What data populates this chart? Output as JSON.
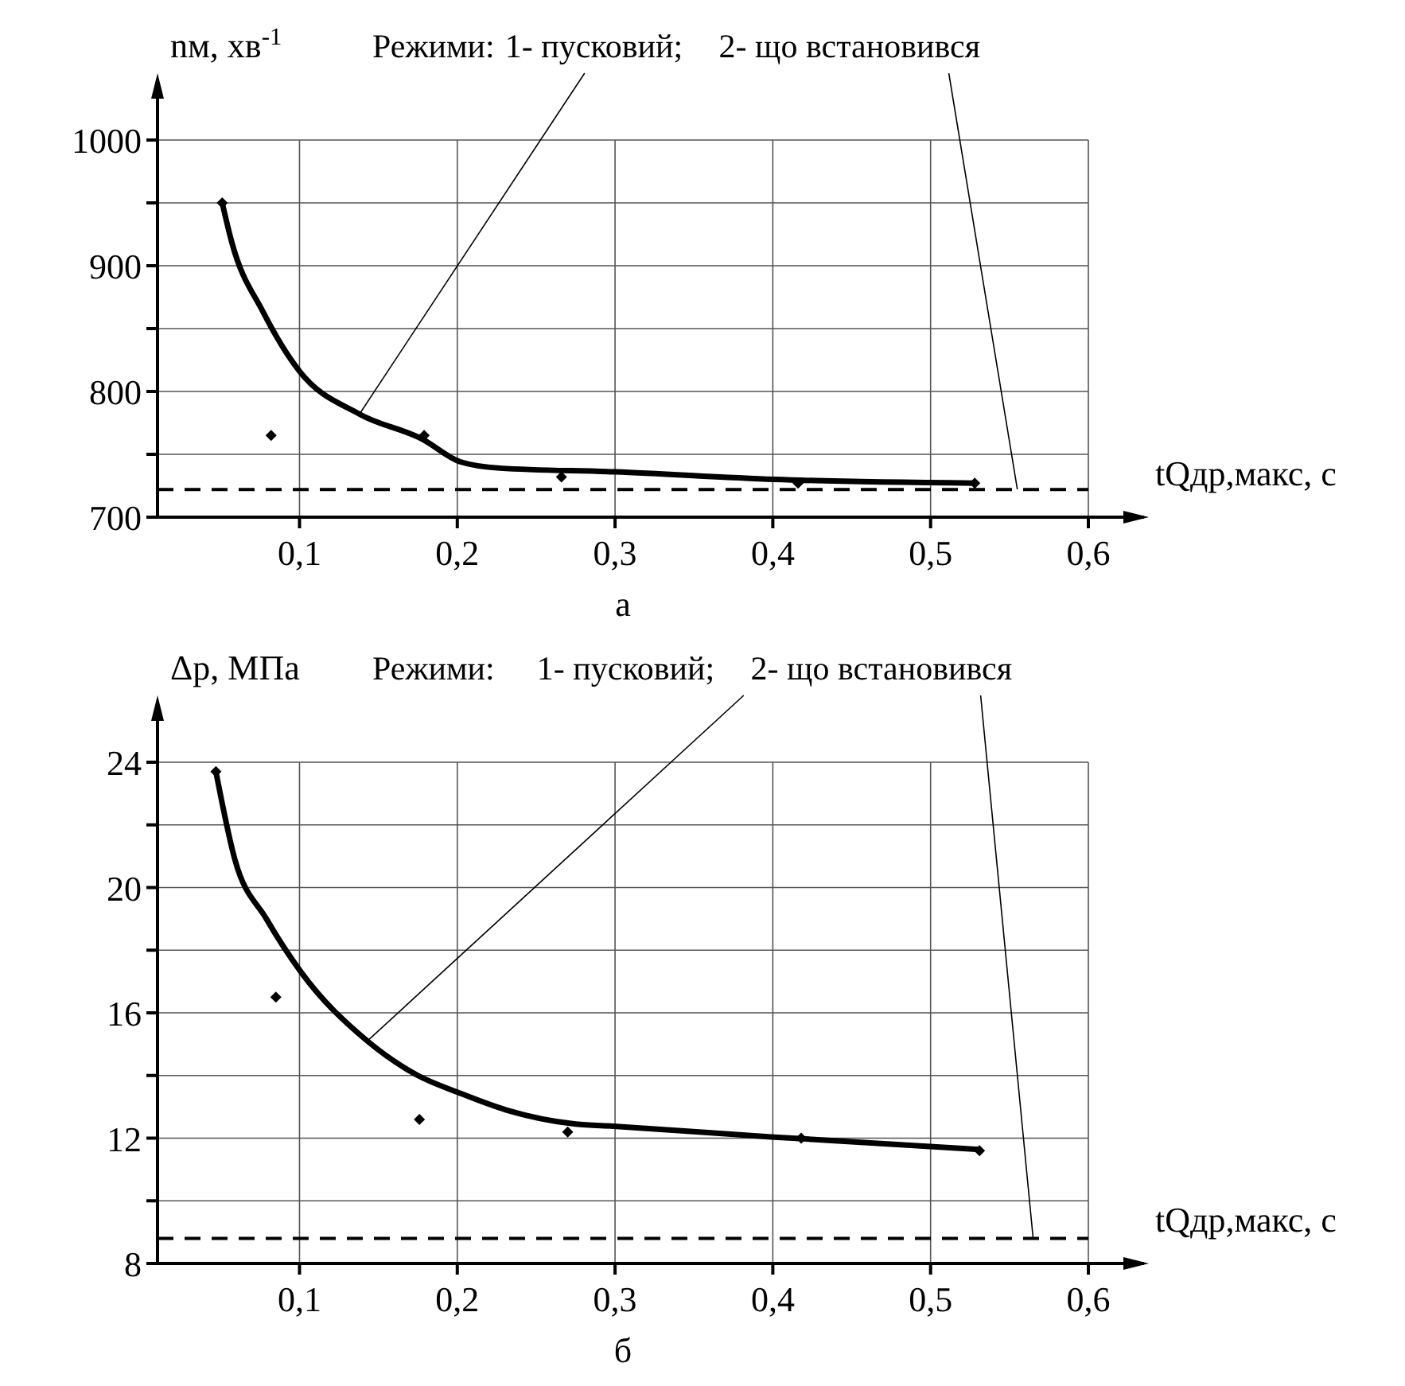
{
  "chart_data": [
    {
      "type": "line",
      "title": "а",
      "ylabel": "nм, хв$^{-1}$",
      "xlabel": "tQдр,макс, с",
      "annotations": [
        "Режими:",
        {
          "text": "1- пусковий;",
          "x": 0.138,
          "y": 782
        },
        {
          "text": "2- що встановився",
          "x": 0.555,
          "y": 722
        }
      ],
      "xlim": [
        0.01,
        0.6
      ],
      "ylim": [
        700,
        1000
      ],
      "xticks": [
        {
          "value": 0.1,
          "label": "0,1"
        },
        {
          "value": 0.2,
          "label": "0,2"
        },
        {
          "value": 0.3,
          "label": "0,3"
        },
        {
          "value": 0.4,
          "label": "0,4"
        },
        {
          "value": 0.5,
          "label": "0,5"
        },
        {
          "value": 0.6,
          "label": "0,6"
        }
      ],
      "yticks": [
        700,
        {
          "value": 750,
          "label": null
        },
        800,
        {
          "value": 850,
          "label": null
        },
        900,
        {
          "value": 950,
          "label": null
        },
        1000
      ],
      "grid": true,
      "ref_lines": [
        {
          "axis": "y",
          "value": 722,
          "line_style": "dashed",
          "color": "#000000"
        }
      ],
      "series": [
        {
          "type": "line",
          "color": "#000000",
          "marker": "none",
          "x": [
            0.051,
            0.057,
            0.077,
            0.1,
            0.138,
            0.178,
            0.202,
            0.227,
            0.3,
            0.401,
            0.528
          ],
          "values": [
            950,
            919,
            863,
            816,
            782,
            762,
            744,
            739,
            736,
            730,
            727
          ]
        },
        {
          "type": "scatter",
          "color": "#000000",
          "marker": "diamond",
          "x": [
            0.051,
            0.082,
            0.179,
            0.266,
            0.416,
            0.528
          ],
          "values": [
            950,
            765,
            765,
            732,
            727,
            727
          ]
        }
      ]
    },
    {
      "type": "line",
      "title": "б",
      "ylabel": "Δp, МПа",
      "xlabel": "tQдр,макс, с",
      "annotations": [
        "Режими:",
        {
          "text": "1- пусковий;",
          "x": 0.143,
          "y": 15.1
        },
        {
          "text": "2- що встановився",
          "x": 0.565,
          "y": 8.8
        }
      ],
      "xlim": [
        0.01,
        0.6
      ],
      "ylim": [
        8,
        24
      ],
      "xticks": [
        {
          "value": 0.1,
          "label": "0,1"
        },
        {
          "value": 0.2,
          "label": "0,2"
        },
        {
          "value": 0.3,
          "label": "0,3"
        },
        {
          "value": 0.4,
          "label": "0,4"
        },
        {
          "value": 0.5,
          "label": "0,5"
        },
        {
          "value": 0.6,
          "label": "0,6"
        }
      ],
      "yticks": [
        8,
        {
          "value": 10,
          "label": null
        },
        12,
        {
          "value": 14,
          "label": null
        },
        16,
        {
          "value": 18,
          "label": null
        },
        20,
        {
          "value": 22,
          "label": null
        },
        24
      ],
      "grid": true,
      "ref_lines": [
        {
          "axis": "y",
          "value": 8.8,
          "line_style": "dashed",
          "color": "#000000"
        }
      ],
      "series": [
        {
          "type": "line",
          "color": "#000000",
          "marker": "none",
          "x": [
            0.047,
            0.059,
            0.079,
            0.101,
            0.143,
            0.175,
            0.201,
            0.231,
            0.275,
            0.299,
            0.399,
            0.531
          ],
          "values": [
            23.7,
            20.9,
            19.0,
            17.3,
            15.1,
            14.0,
            13.45,
            12.9,
            12.45,
            12.38,
            12.04,
            11.64
          ]
        },
        {
          "type": "scatter",
          "color": "#000000",
          "marker": "diamond",
          "x": [
            0.047,
            0.085,
            0.176,
            0.27,
            0.418,
            0.531
          ],
          "values": [
            23.7,
            16.5,
            12.6,
            12.2,
            12.0,
            11.6
          ]
        }
      ]
    }
  ]
}
